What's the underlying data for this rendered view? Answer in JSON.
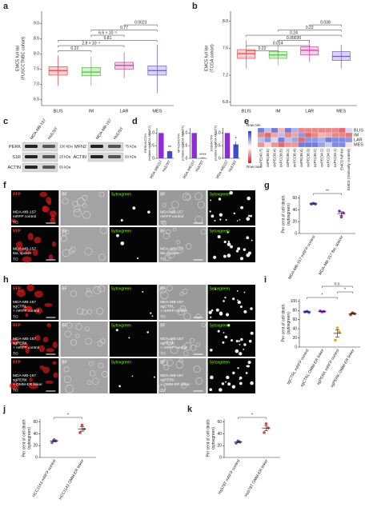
{
  "panels": [
    {
      "letter": "a",
      "type": "box",
      "ylabel": [
        "EMC5 full list",
        "(FUSCCTNBC cohort)"
      ],
      "ylim": [
        6.3,
        9.4
      ],
      "yticks": [
        6.5,
        {
          "value": 7,
          "label": "7.0"
        },
        7.5,
        {
          "value": 8,
          "label": "8.0"
        },
        8.5,
        {
          "value": 9,
          "label": "9.0"
        }
      ],
      "categories": [
        "BLIS",
        "IM",
        "LAR",
        "MES"
      ],
      "boxes": [
        {
          "color": "#e0474c",
          "q1": 7.3,
          "median": 7.45,
          "q3": 7.58,
          "lo": 6.95,
          "hi": 7.95
        },
        {
          "color": "#58b947",
          "q1": 7.28,
          "median": 7.4,
          "q3": 7.55,
          "lo": 6.95,
          "hi": 7.9
        },
        {
          "color": "#c2439b",
          "q1": 7.5,
          "median": 7.62,
          "q3": 7.72,
          "lo": 7.2,
          "hi": 8.05
        },
        {
          "color": "#6a5acd",
          "q1": 7.3,
          "median": 7.45,
          "q3": 7.6,
          "lo": 6.7,
          "hi": 8.3
        }
      ],
      "comparisons": [
        {
          "pair": [
            0,
            1
          ],
          "label": "0.22"
        },
        {
          "pair": [
            0,
            2
          ],
          "label": "2.8 × 10⁻⁴"
        },
        {
          "pair": [
            0,
            3
          ],
          "label": "0.81"
        },
        {
          "pair": [
            1,
            2
          ],
          "label": "6.6 × 10⁻³"
        },
        {
          "pair": [
            1,
            3
          ],
          "label": "0.77"
        },
        {
          "pair": [
            2,
            3
          ],
          "label": "0.0023"
        }
      ]
    },
    {
      "letter": "b",
      "type": "box",
      "ylabel": [
        "EMC5 full list",
        "(TCGA cohort)"
      ],
      "ylim": [
        6.75,
        8.15
      ],
      "yticks": [
        6.8,
        7.2,
        7.6,
        {
          "value": 8,
          "label": "8.0"
        }
      ],
      "categories": [
        "BLIS",
        "IM",
        "LAR",
        "MES"
      ],
      "boxes": [
        {
          "color": "#e0474c",
          "q1": 7.45,
          "median": 7.52,
          "q3": 7.58,
          "lo": 7.3,
          "hi": 7.72
        },
        {
          "color": "#58b947",
          "q1": 7.45,
          "median": 7.5,
          "q3": 7.55,
          "lo": 7.35,
          "hi": 7.65
        },
        {
          "color": "#c2439b",
          "q1": 7.5,
          "median": 7.57,
          "q3": 7.62,
          "lo": 7.4,
          "hi": 7.72
        },
        {
          "color": "#6a5acd",
          "q1": 7.42,
          "median": 7.48,
          "q3": 7.55,
          "lo": 7.3,
          "hi": 7.65
        }
      ],
      "comparisons": [
        {
          "pair": [
            0,
            1
          ],
          "label": "0.22"
        },
        {
          "pair": [
            0,
            2
          ],
          "label": "0.014"
        },
        {
          "pair": [
            1,
            2
          ],
          "label": "0.00039"
        },
        {
          "pair": [
            0,
            3
          ],
          "label": "0.24"
        },
        {
          "pair": [
            1,
            3
          ],
          "label": "0.22"
        },
        {
          "pair": [
            2,
            3
          ],
          "label": "0.038"
        }
      ]
    },
    {
      "letter": "c",
      "type": "blot",
      "lanes": [
        "MDA-MB-157",
        "Hs578T"
      ],
      "blocks": [
        {
          "rows": [
            {
              "protein": "PERK",
              "marker": "150 kDa"
            },
            {
              "protein": "S1R",
              "marker": "25 kDa"
            },
            {
              "protein": "ACTIN",
              "marker": "50 kDa"
            }
          ]
        },
        {
          "rows": [
            {
              "protein": "MFN2",
              "marker": "75 kDa"
            },
            {
              "protein": "ACTIN",
              "marker": "50 kDa"
            }
          ]
        }
      ]
    },
    {
      "letter": "d",
      "type": "minibar",
      "categories": [
        "MDA-MB157",
        "Hs578T"
      ],
      "colors": [
        "#8e2bd6",
        "#3b4fd0"
      ],
      "ylim": [
        0,
        1.2
      ],
      "yticks": [
        0,
        0.5,
        {
          "value": 1,
          "label": "1.0"
        }
      ],
      "charts": [
        {
          "ylabel": [
            "PERK/ACTIN",
            "(relative to MDA-MB157)"
          ],
          "values": [
            1,
            0.28
          ],
          "errors": [
            0,
            0.05
          ],
          "stars": "**"
        },
        {
          "ylabel": [
            "MFN2/ACTIN",
            "(relative to MDA-MB157)"
          ],
          "values": [
            1,
            0.02
          ],
          "errors": [
            0,
            0.01
          ],
          "stars": "****"
        },
        {
          "ylabel": [
            "S1R/ACTIN",
            "(relative to MDA-MB157)"
          ],
          "values": [
            1,
            0.55
          ],
          "errors": [
            0,
            0.12
          ],
          "stars": "*"
        }
      ]
    },
    {
      "letter": "e",
      "type": "heatmap",
      "rows": [
        "BLIS",
        "IM",
        "LAR",
        "MES"
      ],
      "columns": [
        "oxPE(40:7)",
        "oxPE(38:5)",
        "oxPE(38:4)",
        "oxPC(38:5)",
        "oxPE(36:2)",
        "oxPC(36:4)",
        "oxPE(36:4)",
        "oxPE(36:3)",
        "oxPC(36:2)",
        "oxPE(34:2)",
        "oxPC(34:2)",
        "oxPC(34:1)",
        "EMC5 full list",
        "EMC5 (manually curated)"
      ],
      "values": [
        [
          -1,
          -0.5,
          -1,
          0.5,
          -1,
          -0.6,
          0.8,
          0.8,
          0.8,
          0.8,
          0.8,
          0.8,
          1,
          -0.3
        ],
        [
          0.8,
          1,
          0.6,
          -0.5,
          0.8,
          0.6,
          -0.8,
          1,
          0.8,
          0.5,
          0.6,
          0.8,
          0.8,
          0.9
        ],
        [
          -0.5,
          -0.8,
          -0.3,
          -1,
          -0.5,
          -0.7,
          1,
          -0.8,
          -0.8,
          -0.6,
          -1,
          -0.9,
          -0.9,
          -0.8
        ],
        [
          0.7,
          0.3,
          0.7,
          1,
          0.7,
          0.7,
          -1,
          -1,
          -1,
          -0.7,
          -0.4,
          -0.9,
          -0.9,
          0.2
        ]
      ],
      "zlim": [
        -1.5,
        1.5
      ],
      "colors": [
        "#2b3cc9",
        "#ffffff",
        "#d62020"
      ],
      "scale": [
        "Row min",
        "Row max"
      ]
    },
    {
      "letter": "f",
      "type": "images",
      "columns": [
        "RFP",
        "BF",
        "Sytoxgreen",
        "BF",
        "Sytoxgreen"
      ],
      "rows": [
        {
          "caption": [
            "MDA-MB-157",
            "mRFP control"
          ],
          "marker": "TO"
        },
        {
          "caption": [
            "MDA-MB-157",
            "8xL spacer"
          ],
          "marker": "TO"
        }
      ]
    },
    {
      "letter": "g",
      "type": "dot",
      "ylabel": [
        "Per cent of cell death",
        "(sytoxgreen)"
      ],
      "ylim": [
        0,
        65
      ],
      "yticks": [
        0,
        20,
        40,
        60
      ],
      "categories": [
        "MDA-MB-157 mRFP control",
        "MDA-MB-157 8xL spacer"
      ],
      "groups": [
        {
          "color": "#3b4fd0",
          "points": [
            50,
            51,
            50
          ],
          "mean": 50.3,
          "sem": 0.3
        },
        {
          "color": "#9b30d0",
          "points": [
            38,
            28,
            35
          ],
          "mean": 33.7,
          "sem": 2.9
        }
      ],
      "annotations": [
        {
          "pair": [
            0,
            1
          ],
          "label": "**"
        }
      ]
    },
    {
      "letter": "h",
      "type": "images",
      "columns": [
        "RFP",
        "BF",
        "Sytoxgreen",
        "BF",
        "Sytoxgreen"
      ],
      "rows": [
        {
          "caption": [
            "MDA-MB-157",
            "sgCTRL",
            "+ mRFP control"
          ],
          "marker": "TO"
        },
        {
          "caption": [
            "MDA-MB-157",
            "sgPERK",
            "+ mRFP control"
          ],
          "marker": "TO"
        },
        {
          "caption": [
            "MDA-MB-157",
            "sgPERK",
            "+ OMM-ER linker"
          ],
          "marker": "TO"
        }
      ]
    },
    {
      "letter": "i",
      "type": "dot",
      "ylabel": [
        "Per cent of cell death",
        "(sytoxgreen)"
      ],
      "ylim": [
        0,
        105
      ],
      "yticks": [
        0,
        20,
        40,
        60,
        80,
        100
      ],
      "categories": [
        "sgCTRL mRFP control",
        "sgCTRL OMM-ER linker",
        "sgPERK mRFP control",
        "sgPERK OMM-ER linker"
      ],
      "groups": [
        {
          "color": "#3b4fd0",
          "points": [
            77,
            78,
            76
          ],
          "mean": 77,
          "sem": 0.6
        },
        {
          "color": "#9b30d0",
          "points": [
            79,
            77,
            78
          ],
          "mean": 78,
          "sem": 0.6
        },
        {
          "color": "#f0a020",
          "points": [
            15,
            42,
            33
          ],
          "mean": 30,
          "sem": 8
        },
        {
          "color": "#c0392b",
          "points": [
            71,
            75,
            73
          ],
          "mean": 73,
          "sem": 1.2
        }
      ],
      "annotations": [
        {
          "pair": [
            0,
            2
          ],
          "label": "*"
        },
        {
          "pair": [
            2,
            3
          ],
          "label": "*"
        },
        {
          "pair": [
            1,
            3
          ],
          "label": "n.s."
        }
      ]
    },
    {
      "letter": "j",
      "type": "dot",
      "ylabel": [
        "Per cent of cell death",
        "(sytoxgreen)"
      ],
      "ylim": [
        0,
        65
      ],
      "yticks": [
        0,
        20,
        40,
        60
      ],
      "categories": [
        "HCC1143 mRFP control",
        "HCC1143 OMM-ER linker"
      ],
      "groups": [
        {
          "color": "#7b5ea7",
          "points": [
            25,
            30,
            28
          ],
          "mean": 27.7,
          "sem": 1.5
        },
        {
          "color": "#e0474c",
          "points": [
            42,
            55,
            48
          ],
          "mean": 48.3,
          "sem": 3.8
        }
      ],
      "annotations": [
        {
          "pair": [
            0,
            1
          ],
          "label": "*"
        }
      ]
    },
    {
      "letter": "k",
      "type": "dot",
      "ylabel": [
        "Per cent of cell death",
        "(sytoxgreen)"
      ],
      "ylim": [
        0,
        65
      ],
      "yticks": [
        0,
        20,
        40,
        60
      ],
      "categories": [
        "Hs578T mRFP control",
        "Hs578T OMM-ER linker"
      ],
      "groups": [
        {
          "color": "#7b5ea7",
          "points": [
            24,
            28,
            26
          ],
          "mean": 26,
          "sem": 1.2
        },
        {
          "color": "#e0474c",
          "points": [
            42,
            57,
            50
          ],
          "mean": 49.7,
          "sem": 4.3
        }
      ],
      "annotations": [
        {
          "pair": [
            0,
            1
          ],
          "label": "*"
        }
      ]
    }
  ]
}
